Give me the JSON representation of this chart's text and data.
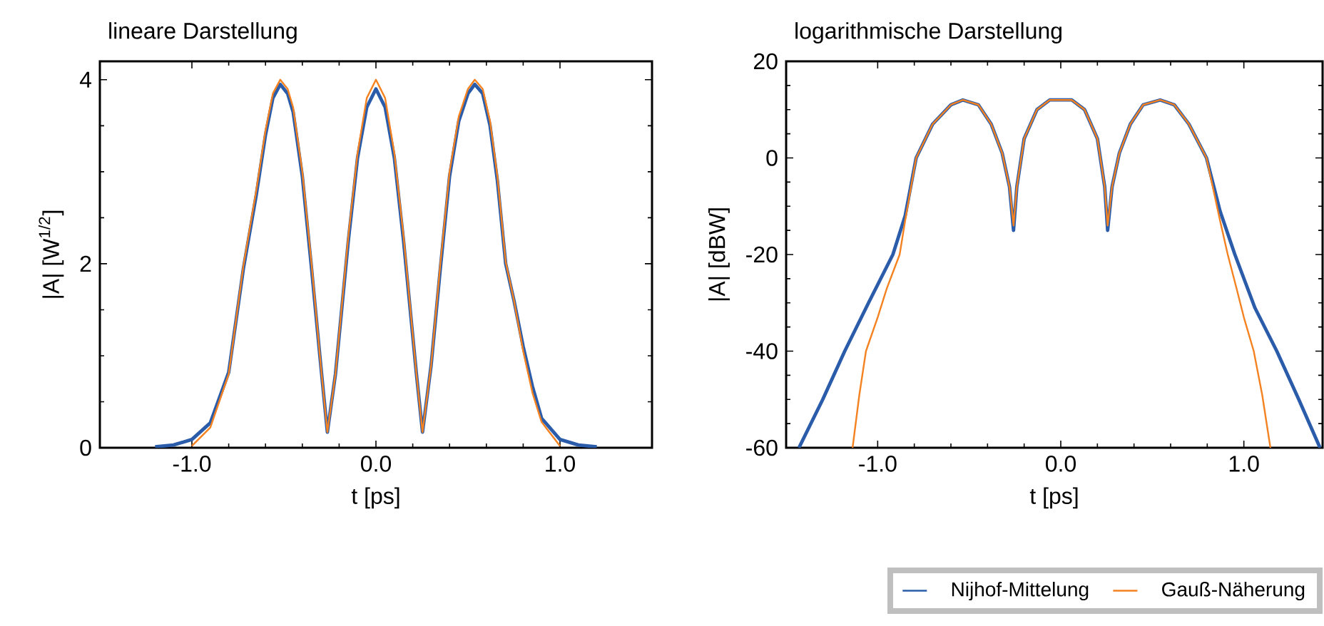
{
  "chart_data": [
    {
      "type": "line",
      "title": "lineare Darstellung",
      "xlabel": "t [ps]",
      "ylabel": "|A| [W$^{1/2}$]",
      "xlim": [
        -1.5,
        1.5
      ],
      "ylim": [
        0,
        4.2
      ],
      "xticks": [
        {
          "value": -1,
          "label": "-1.0"
        },
        {
          "value": 0,
          "label": "0.0"
        },
        {
          "value": 1,
          "label": "1.0"
        }
      ],
      "yticks": [
        0,
        2,
        4
      ],
      "grid": false,
      "line_style": "solid",
      "marker": "none",
      "series": [
        {
          "color": "#2a5caa",
          "x": [
            -1.2,
            -1.1,
            -1.0,
            -0.9,
            -0.8,
            -0.72,
            -0.65,
            -0.6,
            -0.56,
            -0.52,
            -0.48,
            -0.45,
            -0.4,
            -0.35,
            -0.3,
            -0.264,
            -0.22,
            -0.15,
            -0.1,
            -0.05,
            0,
            0.05,
            0.1,
            0.15,
            0.22,
            0.253,
            0.3,
            0.35,
            0.4,
            0.45,
            0.5,
            0.537,
            0.58,
            0.62,
            0.66,
            0.705,
            0.75,
            0.8,
            0.85,
            0.9,
            1.0,
            1.1,
            1.2
          ],
          "values": [
            0.01,
            0.03,
            0.09,
            0.27,
            0.82,
            1.95,
            2.75,
            3.4,
            3.8,
            3.95,
            3.85,
            3.65,
            2.95,
            1.95,
            0.9,
            0.17,
            0.8,
            2.25,
            3.15,
            3.7,
            3.9,
            3.7,
            3.15,
            2.25,
            0.8,
            0.17,
            0.9,
            1.95,
            2.95,
            3.55,
            3.85,
            3.95,
            3.85,
            3.5,
            2.9,
            2.0,
            1.6,
            1.1,
            0.67,
            0.32,
            0.09,
            0.03,
            0.01
          ]
        },
        {
          "color": "#f58220",
          "x": [
            -1.0,
            -0.9,
            -0.8,
            -0.72,
            -0.65,
            -0.6,
            -0.56,
            -0.52,
            -0.48,
            -0.45,
            -0.4,
            -0.35,
            -0.3,
            -0.264,
            -0.22,
            -0.15,
            -0.1,
            -0.05,
            0,
            0.05,
            0.1,
            0.15,
            0.22,
            0.253,
            0.3,
            0.35,
            0.4,
            0.45,
            0.5,
            0.537,
            0.58,
            0.62,
            0.66,
            0.705,
            0.75,
            0.8,
            0.85,
            0.9,
            1.0
          ],
          "values": [
            0.02,
            0.22,
            0.8,
            1.98,
            2.8,
            3.45,
            3.85,
            4.0,
            3.9,
            3.7,
            3.0,
            2.0,
            0.9,
            0.17,
            0.8,
            2.3,
            3.2,
            3.8,
            4.0,
            3.8,
            3.2,
            2.3,
            0.8,
            0.17,
            0.9,
            2.0,
            3.0,
            3.6,
            3.9,
            4.0,
            3.9,
            3.55,
            2.95,
            2.02,
            1.6,
            1.05,
            0.6,
            0.28,
            0.02
          ]
        }
      ]
    },
    {
      "type": "line",
      "title": "logarithmische Darstellung",
      "xlabel": "t [ps]",
      "ylabel": "|A| [dBW]",
      "xlim": [
        -1.5,
        1.43
      ],
      "ylim": [
        -60,
        20
      ],
      "xticks": [
        {
          "value": -1,
          "label": "-1.0"
        },
        {
          "value": 0,
          "label": "0.0"
        },
        {
          "value": 1,
          "label": "1.0"
        }
      ],
      "yticks": [
        -60,
        -40,
        -20,
        0,
        20
      ],
      "grid": false,
      "legend": "bottom right",
      "line_style": "solid",
      "marker": "none",
      "series": [
        {
          "name": "Nijhof-Mittelung",
          "color": "#2a5caa",
          "x": [
            -1.43,
            -1.3,
            -1.18,
            -1.05,
            -0.917,
            -0.85,
            -0.79,
            -0.7,
            -0.6,
            -0.535,
            -0.45,
            -0.38,
            -0.32,
            -0.28,
            -0.258,
            -0.24,
            -0.2,
            -0.13,
            -0.06,
            0,
            0.06,
            0.13,
            0.2,
            0.24,
            0.256,
            0.28,
            0.32,
            0.38,
            0.45,
            0.543,
            0.62,
            0.7,
            0.796,
            0.87,
            0.951,
            1.06,
            1.18,
            1.3,
            1.416
          ],
          "values": [
            -60,
            -50,
            -40,
            -30,
            -20,
            -12,
            0,
            7,
            11,
            12,
            11,
            7,
            1,
            -6,
            -15,
            -6,
            4,
            10,
            12,
            12,
            12,
            10,
            4,
            -6,
            -15,
            -6,
            1,
            7,
            11,
            12,
            11,
            7,
            0,
            -11,
            -20,
            -31,
            -40,
            -50,
            -60
          ]
        },
        {
          "name": "Gauß-Näherung",
          "color": "#f58220",
          "x": [
            -1.137,
            -1.1,
            -1.064,
            -1.0,
            -0.95,
            -0.88,
            -0.85,
            -0.79,
            -0.7,
            -0.6,
            -0.535,
            -0.45,
            -0.38,
            -0.32,
            -0.28,
            -0.258,
            -0.24,
            -0.2,
            -0.13,
            -0.06,
            0,
            0.06,
            0.13,
            0.2,
            0.24,
            0.256,
            0.28,
            0.32,
            0.38,
            0.45,
            0.543,
            0.62,
            0.7,
            0.796,
            0.87,
            0.912,
            0.96,
            1.0,
            1.054,
            1.1,
            1.145
          ],
          "values": [
            -60,
            -49,
            -40,
            -33,
            -27,
            -20,
            -13,
            0,
            7,
            11,
            12,
            11,
            7,
            1,
            -6,
            -14,
            -6,
            4,
            10,
            12,
            12,
            12,
            10,
            4,
            -6,
            -14,
            -6,
            1,
            7,
            11,
            12,
            11,
            7,
            0,
            -13,
            -20,
            -27,
            -33,
            -40,
            -49,
            -60
          ]
        }
      ]
    }
  ]
}
